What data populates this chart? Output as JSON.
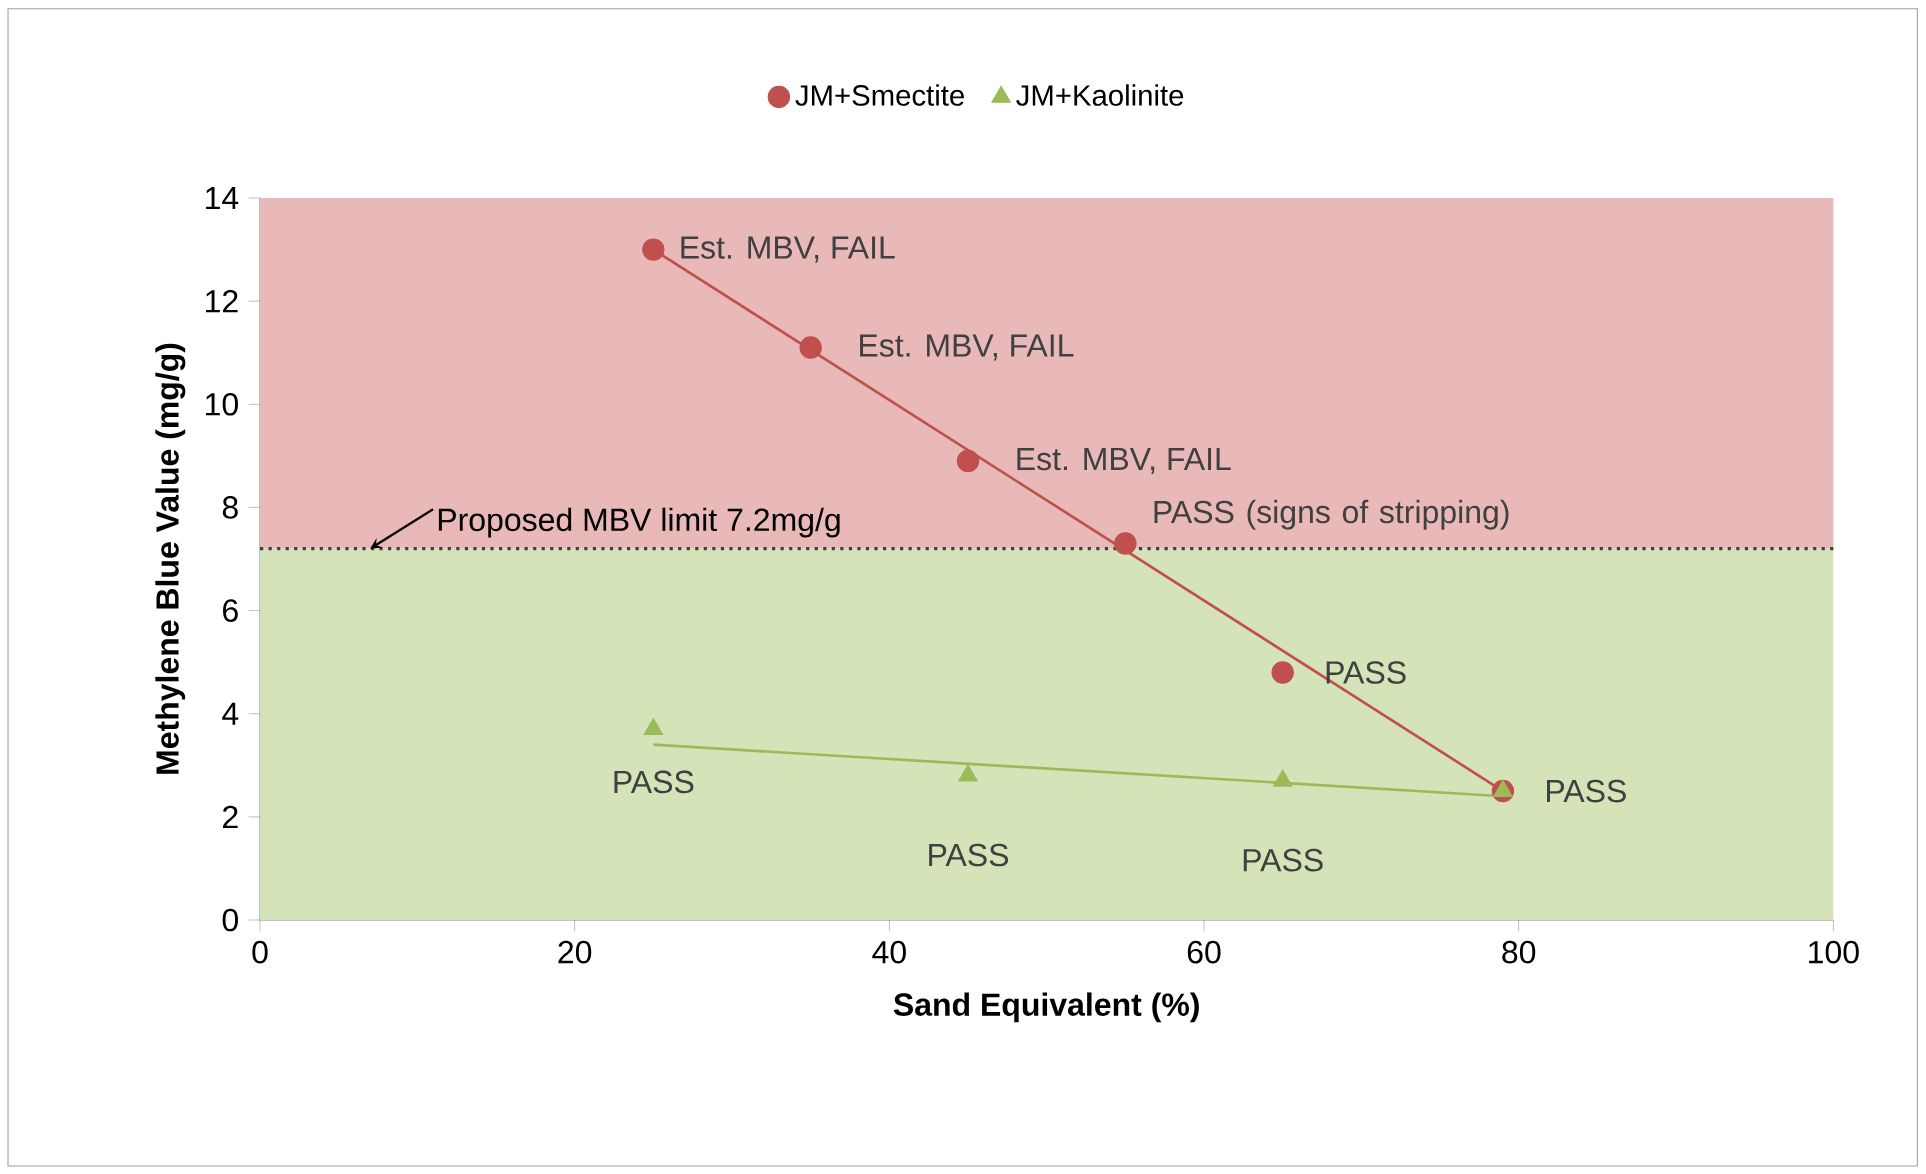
{
  "chart_data": {
    "type": "scatter",
    "xlabel": "Sand Equivalent  (%)",
    "ylabel": "Methylene Blue Value (mg/g)",
    "xlim": [
      0,
      100
    ],
    "xticks": [
      0,
      20,
      40,
      60,
      80,
      100
    ],
    "ylim": [
      0,
      14
    ],
    "yticks": [
      0,
      2,
      4,
      6,
      8,
      10,
      12,
      14
    ],
    "legend": "top",
    "series": [
      {
        "name": "JM+Smectite",
        "color": "#c0504d",
        "marker": "circle",
        "x": [
          25,
          35,
          45,
          55,
          65,
          79
        ],
        "values": [
          13.0,
          11.1,
          8.9,
          7.3,
          4.8,
          2.5
        ]
      },
      {
        "name": "JM+Kaolinite",
        "color": "#9bbb59",
        "marker": "triangle",
        "x": [
          25,
          45,
          65,
          79
        ],
        "values": [
          3.7,
          2.8,
          2.7,
          2.5
        ]
      },
      {
        "type": "line",
        "color": "#c0504d",
        "marker": "none",
        "x": [
          25,
          79
        ],
        "values": [
          13.0,
          2.5
        ]
      },
      {
        "type": "line",
        "color": "#9bbb59",
        "marker": "none",
        "x": [
          25,
          79
        ],
        "values": [
          3.4,
          2.4
        ]
      }
    ],
    "ref_lines": [
      {
        "axis": "y",
        "value": 7.2,
        "label": "Proposed MBV limit 7.2mg/g",
        "color": "#404040",
        "line_style": "dotted"
      }
    ],
    "bands": [
      {
        "axis": "y",
        "from": 7.2,
        "to": 14,
        "color": "#e8b9b8"
      },
      {
        "axis": "y",
        "from": 0,
        "to": 7.2,
        "color": "#d5e3b8"
      }
    ],
    "annotations": [
      {
        "text": "Est. MBV, FAIL",
        "x": 25,
        "y": 13.0
      },
      {
        "text": "Est. MBV, FAIL",
        "x": 35,
        "y": 11.1
      },
      {
        "text": "Est. MBV, FAIL",
        "x": 45,
        "y": 8.9
      },
      {
        "text": "PASS (signs of stripping)",
        "x": 55,
        "y": 7.3
      },
      {
        "text": "PASS",
        "x": 65,
        "y": 4.8
      },
      {
        "text": "PASS",
        "x": 79,
        "y": 2.5
      },
      {
        "text": "PASS",
        "x": 25,
        "y": 3.7
      },
      {
        "text": "PASS",
        "x": 45,
        "y": 2.8
      },
      {
        "text": "PASS",
        "x": 65,
        "y": 2.7
      }
    ]
  }
}
